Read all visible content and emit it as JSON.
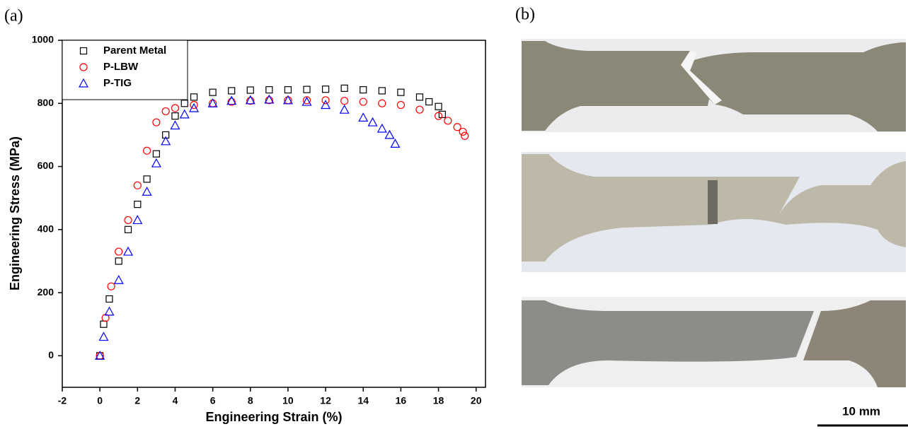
{
  "panels": {
    "a": "(a)",
    "b": "(b)"
  },
  "scale_bar": "10 mm",
  "chart_data": {
    "type": "scatter",
    "x_label": "Engineering Strain (%)",
    "y_label": "Engineering Stress (MPa)",
    "xlim": [
      -2,
      20.5
    ],
    "ylim": [
      -100,
      1000
    ],
    "xticks": [
      -2,
      0,
      2,
      4,
      6,
      8,
      10,
      12,
      14,
      16,
      18,
      20
    ],
    "yticks": [
      0,
      200,
      400,
      600,
      800,
      1000
    ],
    "legend": "upper left",
    "series": [
      {
        "name": "Parent Metal",
        "color": "#000000",
        "marker": "square",
        "x": [
          0,
          0.2,
          0.5,
          1,
          1.5,
          2,
          2.5,
          3,
          3.5,
          4,
          4.5,
          5,
          6,
          7,
          8,
          9,
          10,
          11,
          12,
          13,
          14,
          15,
          16,
          17,
          17.5,
          18,
          18.2
        ],
        "values": [
          0,
          100,
          180,
          300,
          400,
          480,
          560,
          640,
          700,
          760,
          800,
          820,
          835,
          840,
          842,
          843,
          843,
          844,
          845,
          848,
          843,
          840,
          835,
          820,
          805,
          790,
          765
        ]
      },
      {
        "name": "P-LBW",
        "color": "#ff0000",
        "marker": "circle",
        "x": [
          0,
          0.3,
          0.6,
          1,
          1.5,
          2,
          2.5,
          3,
          3.5,
          4,
          5,
          6,
          7,
          8,
          9,
          10,
          11,
          12,
          13,
          14,
          15,
          16,
          17,
          18,
          18.5,
          19,
          19.3,
          19.4
        ],
        "values": [
          0,
          120,
          220,
          330,
          430,
          540,
          650,
          740,
          775,
          785,
          795,
          800,
          805,
          808,
          810,
          810,
          810,
          810,
          808,
          805,
          800,
          795,
          780,
          760,
          745,
          725,
          710,
          697
        ]
      },
      {
        "name": "P-TIG",
        "color": "#0000ff",
        "marker": "triangle",
        "x": [
          0,
          0.2,
          0.5,
          1,
          1.5,
          2,
          2.5,
          3,
          3.5,
          4,
          4.5,
          5,
          6,
          7,
          8,
          9,
          10,
          11,
          12,
          13,
          14,
          14.5,
          15,
          15.4,
          15.7
        ],
        "values": [
          0,
          60,
          140,
          240,
          330,
          430,
          520,
          610,
          680,
          730,
          765,
          785,
          800,
          808,
          810,
          812,
          810,
          805,
          795,
          780,
          755,
          740,
          720,
          700,
          672
        ]
      }
    ]
  }
}
